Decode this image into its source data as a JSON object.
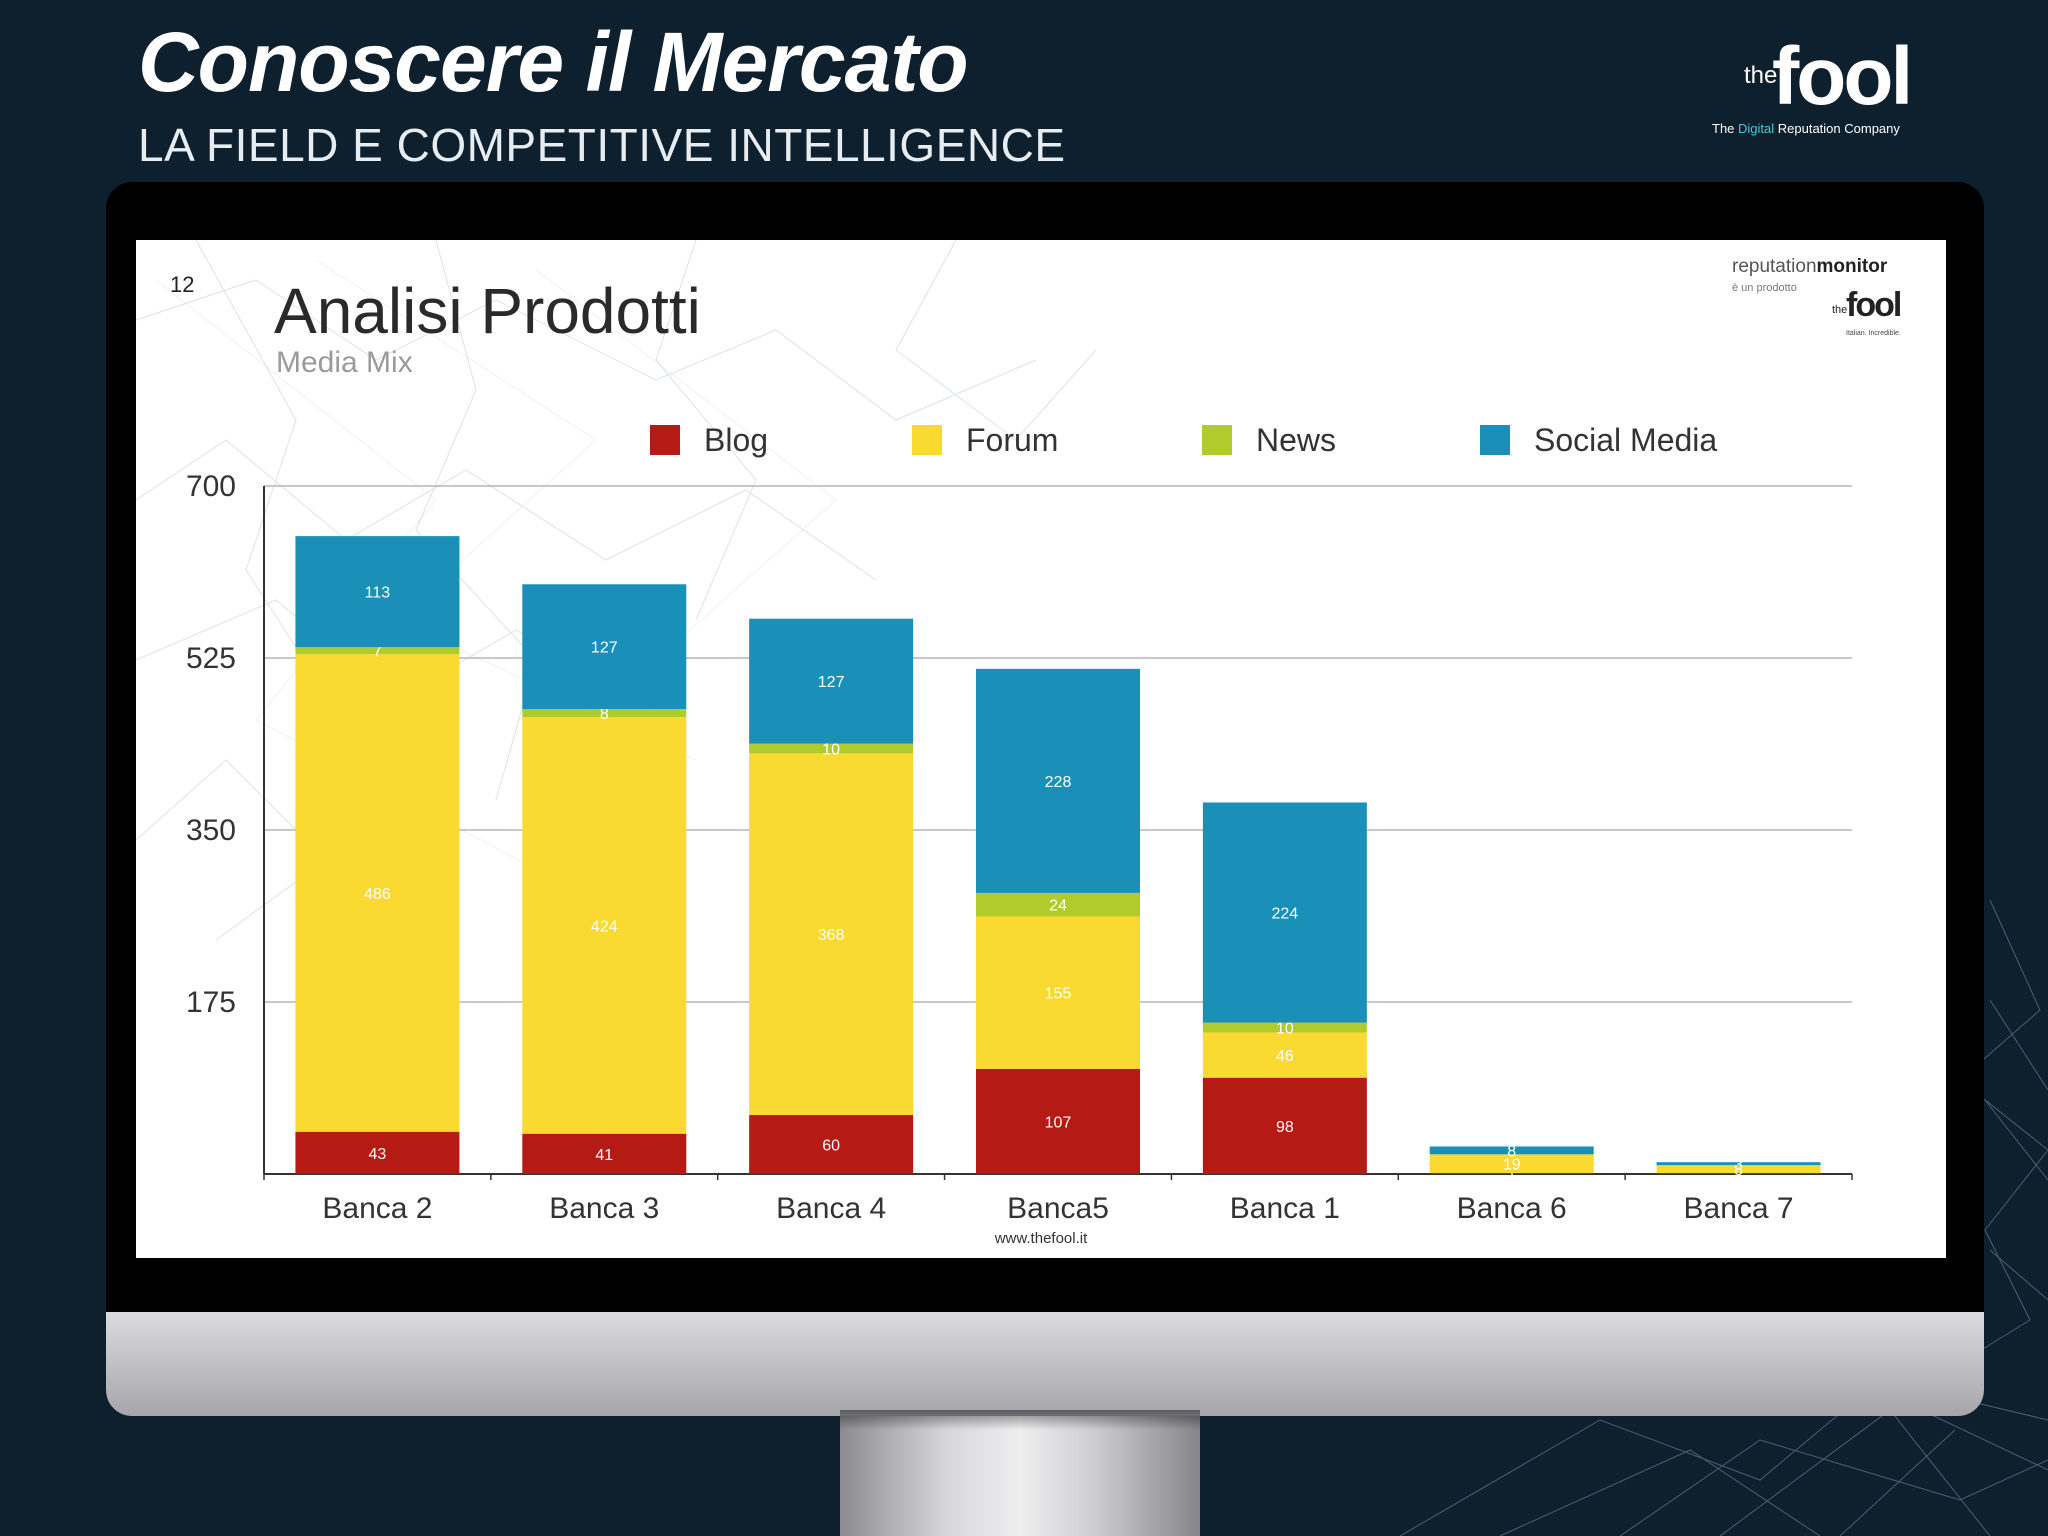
{
  "header": {
    "title": "Conoscere il Mercato",
    "subtitle": "LA FIELD E COMPETITIVE INTELLIGENCE"
  },
  "brand": {
    "the": "the",
    "fool": "fool",
    "tagline_pre": "The ",
    "tagline_accent": "Digital",
    "tagline_post": " Reputation Company"
  },
  "slide": {
    "page_number": "12",
    "title": "Analisi Prodotti",
    "subtitle": "Media Mix",
    "footer_url": "www.thefool.it",
    "rm_logo": {
      "line1_a": "reputation",
      "line1_b": "monitor",
      "line2": "è un prodotto",
      "the": "the",
      "fool": "fool",
      "tag": "Italian. Incredible."
    }
  },
  "colors": {
    "blog": "#b51a14",
    "forum": "#fad930",
    "news": "#b2cb2c",
    "social": "#1a8fb8",
    "gridline": "#b5b5b5",
    "axis": "#333333",
    "page_bg": "#0e1f2e"
  },
  "chart_data": {
    "type": "bar",
    "stacked": true,
    "title": "Analisi Prodotti",
    "subtitle": "Media Mix",
    "categories": [
      "Banca 2",
      "Banca 3",
      "Banca 4",
      "Banca5",
      "Banca 1",
      "Banca 6",
      "Banca 7"
    ],
    "series": [
      {
        "name": "Blog",
        "color_key": "blog",
        "values": [
          43,
          41,
          60,
          107,
          98,
          1,
          1
        ]
      },
      {
        "name": "Forum",
        "color_key": "forum",
        "values": [
          486,
          424,
          368,
          155,
          46,
          19,
          8
        ]
      },
      {
        "name": "News",
        "color_key": "news",
        "values": [
          7,
          8,
          10,
          24,
          10,
          0,
          0
        ]
      },
      {
        "name": "Social Media",
        "color_key": "social",
        "values": [
          113,
          127,
          127,
          228,
          224,
          8,
          3
        ]
      }
    ],
    "data_labels": [
      [
        "43",
        "41",
        "60",
        "107",
        "98",
        "1",
        ""
      ],
      [
        "486",
        "424",
        "368",
        "155",
        "46",
        "19",
        "8"
      ],
      [
        "7",
        "8",
        "10",
        "24",
        "10",
        "",
        ""
      ],
      [
        "113",
        "127",
        "127",
        "228",
        "224",
        "8",
        "3"
      ]
    ],
    "yticks": [
      175,
      350,
      525,
      700
    ],
    "ylim": [
      0,
      700
    ],
    "grid": true,
    "legend_position": "top"
  }
}
